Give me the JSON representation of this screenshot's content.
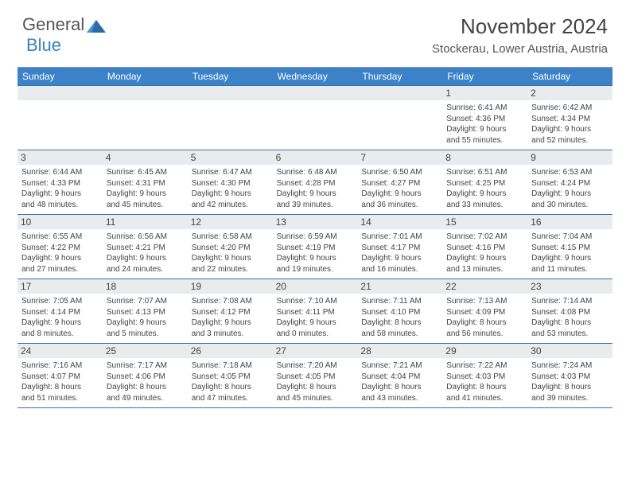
{
  "logo": {
    "text1": "General",
    "text2": "Blue"
  },
  "title": "November 2024",
  "location": "Stockerau, Lower Austria, Austria",
  "colors": {
    "header_bg": "#3b82c9",
    "header_text": "#ffffff",
    "daynum_bg": "#e8ecef",
    "border": "#3b6fa5",
    "text": "#444444",
    "logo_gray": "#555555",
    "logo_blue": "#3b7fc4"
  },
  "day_names": [
    "Sunday",
    "Monday",
    "Tuesday",
    "Wednesday",
    "Thursday",
    "Friday",
    "Saturday"
  ],
  "weeks": [
    [
      {
        "blank": true
      },
      {
        "blank": true
      },
      {
        "blank": true
      },
      {
        "blank": true
      },
      {
        "blank": true
      },
      {
        "n": "1",
        "sr": "Sunrise: 6:41 AM",
        "ss": "Sunset: 4:36 PM",
        "dl1": "Daylight: 9 hours",
        "dl2": "and 55 minutes."
      },
      {
        "n": "2",
        "sr": "Sunrise: 6:42 AM",
        "ss": "Sunset: 4:34 PM",
        "dl1": "Daylight: 9 hours",
        "dl2": "and 52 minutes."
      }
    ],
    [
      {
        "n": "3",
        "sr": "Sunrise: 6:44 AM",
        "ss": "Sunset: 4:33 PM",
        "dl1": "Daylight: 9 hours",
        "dl2": "and 48 minutes."
      },
      {
        "n": "4",
        "sr": "Sunrise: 6:45 AM",
        "ss": "Sunset: 4:31 PM",
        "dl1": "Daylight: 9 hours",
        "dl2": "and 45 minutes."
      },
      {
        "n": "5",
        "sr": "Sunrise: 6:47 AM",
        "ss": "Sunset: 4:30 PM",
        "dl1": "Daylight: 9 hours",
        "dl2": "and 42 minutes."
      },
      {
        "n": "6",
        "sr": "Sunrise: 6:48 AM",
        "ss": "Sunset: 4:28 PM",
        "dl1": "Daylight: 9 hours",
        "dl2": "and 39 minutes."
      },
      {
        "n": "7",
        "sr": "Sunrise: 6:50 AM",
        "ss": "Sunset: 4:27 PM",
        "dl1": "Daylight: 9 hours",
        "dl2": "and 36 minutes."
      },
      {
        "n": "8",
        "sr": "Sunrise: 6:51 AM",
        "ss": "Sunset: 4:25 PM",
        "dl1": "Daylight: 9 hours",
        "dl2": "and 33 minutes."
      },
      {
        "n": "9",
        "sr": "Sunrise: 6:53 AM",
        "ss": "Sunset: 4:24 PM",
        "dl1": "Daylight: 9 hours",
        "dl2": "and 30 minutes."
      }
    ],
    [
      {
        "n": "10",
        "sr": "Sunrise: 6:55 AM",
        "ss": "Sunset: 4:22 PM",
        "dl1": "Daylight: 9 hours",
        "dl2": "and 27 minutes."
      },
      {
        "n": "11",
        "sr": "Sunrise: 6:56 AM",
        "ss": "Sunset: 4:21 PM",
        "dl1": "Daylight: 9 hours",
        "dl2": "and 24 minutes."
      },
      {
        "n": "12",
        "sr": "Sunrise: 6:58 AM",
        "ss": "Sunset: 4:20 PM",
        "dl1": "Daylight: 9 hours",
        "dl2": "and 22 minutes."
      },
      {
        "n": "13",
        "sr": "Sunrise: 6:59 AM",
        "ss": "Sunset: 4:19 PM",
        "dl1": "Daylight: 9 hours",
        "dl2": "and 19 minutes."
      },
      {
        "n": "14",
        "sr": "Sunrise: 7:01 AM",
        "ss": "Sunset: 4:17 PM",
        "dl1": "Daylight: 9 hours",
        "dl2": "and 16 minutes."
      },
      {
        "n": "15",
        "sr": "Sunrise: 7:02 AM",
        "ss": "Sunset: 4:16 PM",
        "dl1": "Daylight: 9 hours",
        "dl2": "and 13 minutes."
      },
      {
        "n": "16",
        "sr": "Sunrise: 7:04 AM",
        "ss": "Sunset: 4:15 PM",
        "dl1": "Daylight: 9 hours",
        "dl2": "and 11 minutes."
      }
    ],
    [
      {
        "n": "17",
        "sr": "Sunrise: 7:05 AM",
        "ss": "Sunset: 4:14 PM",
        "dl1": "Daylight: 9 hours",
        "dl2": "and 8 minutes."
      },
      {
        "n": "18",
        "sr": "Sunrise: 7:07 AM",
        "ss": "Sunset: 4:13 PM",
        "dl1": "Daylight: 9 hours",
        "dl2": "and 5 minutes."
      },
      {
        "n": "19",
        "sr": "Sunrise: 7:08 AM",
        "ss": "Sunset: 4:12 PM",
        "dl1": "Daylight: 9 hours",
        "dl2": "and 3 minutes."
      },
      {
        "n": "20",
        "sr": "Sunrise: 7:10 AM",
        "ss": "Sunset: 4:11 PM",
        "dl1": "Daylight: 9 hours",
        "dl2": "and 0 minutes."
      },
      {
        "n": "21",
        "sr": "Sunrise: 7:11 AM",
        "ss": "Sunset: 4:10 PM",
        "dl1": "Daylight: 8 hours",
        "dl2": "and 58 minutes."
      },
      {
        "n": "22",
        "sr": "Sunrise: 7:13 AM",
        "ss": "Sunset: 4:09 PM",
        "dl1": "Daylight: 8 hours",
        "dl2": "and 56 minutes."
      },
      {
        "n": "23",
        "sr": "Sunrise: 7:14 AM",
        "ss": "Sunset: 4:08 PM",
        "dl1": "Daylight: 8 hours",
        "dl2": "and 53 minutes."
      }
    ],
    [
      {
        "n": "24",
        "sr": "Sunrise: 7:16 AM",
        "ss": "Sunset: 4:07 PM",
        "dl1": "Daylight: 8 hours",
        "dl2": "and 51 minutes."
      },
      {
        "n": "25",
        "sr": "Sunrise: 7:17 AM",
        "ss": "Sunset: 4:06 PM",
        "dl1": "Daylight: 8 hours",
        "dl2": "and 49 minutes."
      },
      {
        "n": "26",
        "sr": "Sunrise: 7:18 AM",
        "ss": "Sunset: 4:05 PM",
        "dl1": "Daylight: 8 hours",
        "dl2": "and 47 minutes."
      },
      {
        "n": "27",
        "sr": "Sunrise: 7:20 AM",
        "ss": "Sunset: 4:05 PM",
        "dl1": "Daylight: 8 hours",
        "dl2": "and 45 minutes."
      },
      {
        "n": "28",
        "sr": "Sunrise: 7:21 AM",
        "ss": "Sunset: 4:04 PM",
        "dl1": "Daylight: 8 hours",
        "dl2": "and 43 minutes."
      },
      {
        "n": "29",
        "sr": "Sunrise: 7:22 AM",
        "ss": "Sunset: 4:03 PM",
        "dl1": "Daylight: 8 hours",
        "dl2": "and 41 minutes."
      },
      {
        "n": "30",
        "sr": "Sunrise: 7:24 AM",
        "ss": "Sunset: 4:03 PM",
        "dl1": "Daylight: 8 hours",
        "dl2": "and 39 minutes."
      }
    ]
  ]
}
